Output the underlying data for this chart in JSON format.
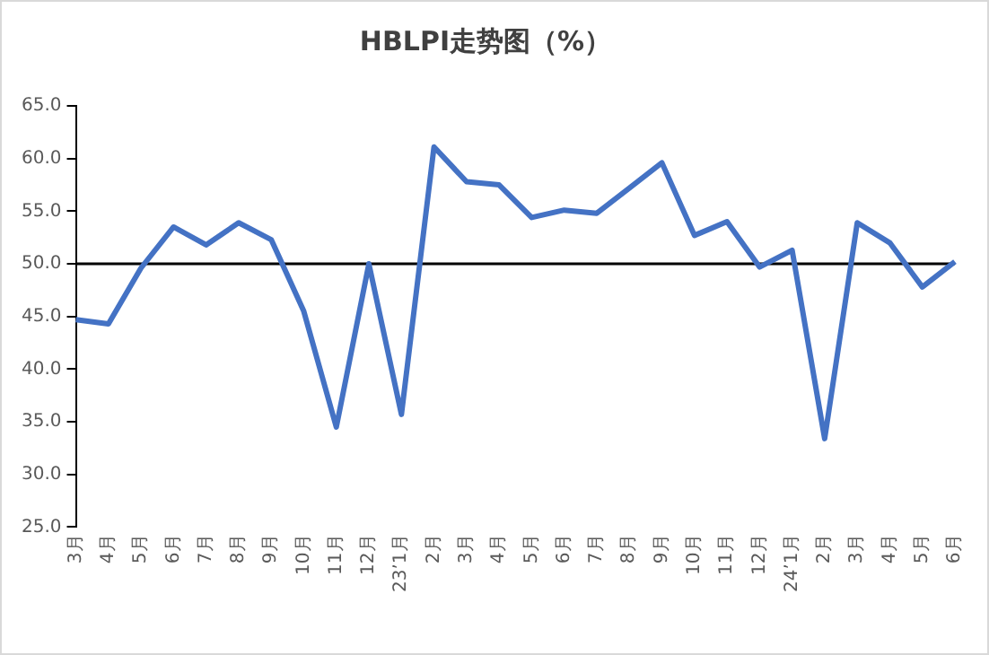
{
  "chart_data": {
    "type": "line",
    "title": "HBLPI走势图（%）",
    "categories": [
      "3月",
      "4月",
      "5月",
      "6月",
      "7月",
      "8月",
      "9月",
      "10月",
      "11月",
      "12月",
      "23’1月",
      "2月",
      "3月",
      "4月",
      "5月",
      "6月",
      "7月",
      "8月",
      "9月",
      "10月",
      "11月",
      "12月",
      "24’1月",
      "2月",
      "3月",
      "4月",
      "5月",
      "6月"
    ],
    "series": [
      {
        "color": "#4472c4",
        "values": [
          44.7,
          44.3,
          49.6,
          53.5,
          51.8,
          53.9,
          52.3,
          45.5,
          34.5,
          50.0,
          35.7,
          61.1,
          57.8,
          57.5,
          54.4,
          55.1,
          54.8,
          57.2,
          59.6,
          52.7,
          54.0,
          49.7,
          51.3,
          33.4,
          53.9,
          52.0,
          47.8,
          50.2
        ]
      }
    ],
    "ylim": [
      25,
      65
    ],
    "yticks": [
      {
        "value": 25,
        "label": "25.0"
      },
      {
        "value": 30,
        "label": "30.0"
      },
      {
        "value": 35,
        "label": "35.0"
      },
      {
        "value": 40,
        "label": "40.0"
      },
      {
        "value": 45,
        "label": "45.0"
      },
      {
        "value": 50,
        "label": "50.0"
      },
      {
        "value": 55,
        "label": "55.0"
      },
      {
        "value": 60,
        "label": "60.0"
      },
      {
        "value": 65,
        "label": "65.0"
      }
    ],
    "ref_lines": [
      {
        "axis": "y",
        "value": 50,
        "color": "#000000"
      }
    ],
    "grid": false,
    "legend": false,
    "marker": "none",
    "line_style": "solid"
  }
}
